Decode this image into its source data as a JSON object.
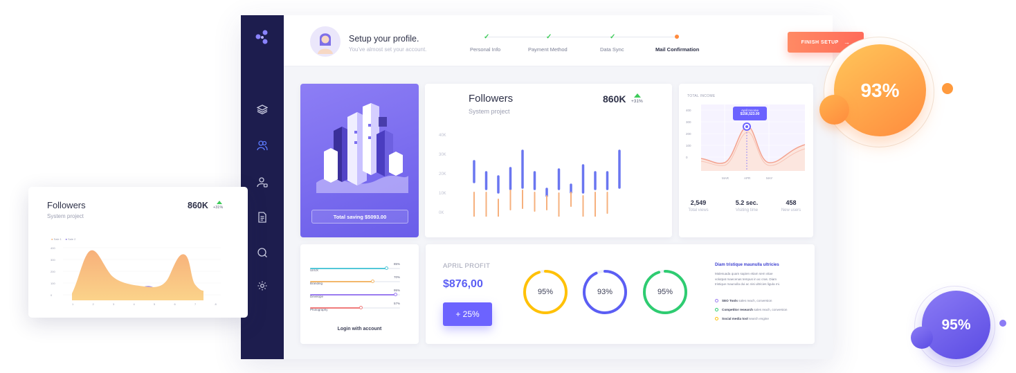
{
  "profile": {
    "title": "Setup your profile.",
    "subtitle": "You've almost set your account."
  },
  "steps": [
    {
      "label": "Personal Info",
      "state": "done"
    },
    {
      "label": "Payment Method",
      "state": "done"
    },
    {
      "label": "Data Sync",
      "state": "done"
    },
    {
      "label": "Mail Confirmation",
      "state": "current"
    }
  ],
  "finish_button": "FINISH SETUP",
  "finish_arrow": "→",
  "sidebar_icons": [
    "logo-icon",
    "layers-icon",
    "users-icon",
    "user-lock-icon",
    "document-icon",
    "chat-icon",
    "gear-icon"
  ],
  "saving_card": {
    "button": "Total saving $5093.00"
  },
  "followers": {
    "title": "Followers",
    "subtitle": "System project",
    "value": "860K",
    "delta": "+31%",
    "axis_labels": [
      "40K",
      "30K",
      "20K",
      "10K",
      "0K"
    ]
  },
  "income": {
    "title": "TOTAL INCOME",
    "tooltip_title": "April Income",
    "tooltip_value": "$156,523.00",
    "y_labels": [
      "400",
      "300",
      "200",
      "100",
      "0"
    ],
    "x_labels": [
      "MAR",
      "APR",
      "MAY"
    ],
    "stats": [
      {
        "value": "2,549",
        "label": "Total views"
      },
      {
        "value": "5.2 sec.",
        "label": "Visiting time"
      },
      {
        "value": "458",
        "label": "New users"
      }
    ]
  },
  "skills": {
    "items": [
      {
        "label": "UI/UX",
        "value": "85%",
        "pct": 0.85,
        "color": "#52c7d8"
      },
      {
        "label": "Branding",
        "value": "70%",
        "pct": 0.7,
        "color": "#f2b76a"
      },
      {
        "label": "Develope",
        "value": "95%",
        "pct": 0.95,
        "color": "#9a7bf0"
      },
      {
        "label": "Photography",
        "value": "57%",
        "pct": 0.57,
        "color": "#f07a7a"
      }
    ],
    "login": "Login with account"
  },
  "profit": {
    "title": "APRIL PROFIT",
    "value": "$876,00",
    "button": "+ 25%",
    "rings": [
      {
        "label": "95%",
        "pct": 0.95,
        "color": "#ffc107"
      },
      {
        "label": "93%",
        "pct": 0.93,
        "color": "#5b5ef4"
      },
      {
        "label": "95%",
        "pct": 0.95,
        "color": "#2ecc71"
      }
    ],
    "side_title": "Diam tristique maunulla ultricies",
    "side_text_1": "Malesuada quam sapien etiam sem vitae",
    "side_text_2": "volutpat maecenas tempus in ac cras. Diam",
    "side_text_3": "tristique maunulla dui ac nisi ultricies ligula mi.",
    "legend": [
      {
        "name": "SEO Tools",
        "desc": "sales reach, conversion",
        "color": "#9a7bf0"
      },
      {
        "name": "Competitor research",
        "desc": "sales reach, conversion",
        "color": "#2ecc71"
      },
      {
        "name": "Social media tool",
        "desc": "search engine",
        "color": "#ffc107"
      }
    ]
  },
  "float_card": {
    "title": "Followers",
    "subtitle": "System project",
    "value": "860K",
    "delta": "+31%",
    "legend": [
      "Sale 1",
      "Sale 2"
    ],
    "y_labels": [
      "400",
      "300",
      "200",
      "100",
      "0"
    ],
    "x_labels": [
      "1",
      "2",
      "3",
      "4",
      "5",
      "6",
      "7",
      "8"
    ]
  },
  "bubble_orange": {
    "label": "93%"
  },
  "bubble_purple": {
    "label": "95%"
  },
  "colors": {
    "sidebar": "#1d1d4e",
    "accent_purple": "#6c63ff",
    "accent_orange": "#ff7f5a"
  }
}
